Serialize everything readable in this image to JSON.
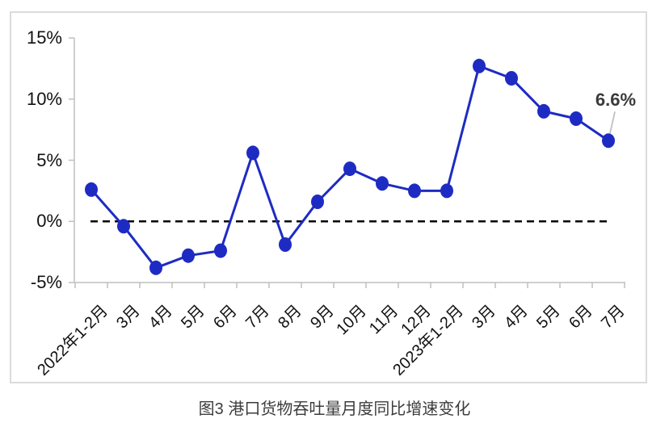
{
  "figure": {
    "caption": "图3 港口货物吞吐量月度同比增速变化"
  },
  "chart_data": {
    "type": "line",
    "title": "图3 港口货物吞吐量月度同比增速变化",
    "categories": [
      "2022年1-2月",
      "3月",
      "4月",
      "5月",
      "6月",
      "7月",
      "8月",
      "9月",
      "10月",
      "11月",
      "12月",
      "2023年1-2月",
      "3月",
      "4月",
      "5月",
      "6月",
      "7月"
    ],
    "values": [
      2.6,
      -0.4,
      -3.8,
      -2.8,
      -2.4,
      5.6,
      -1.9,
      1.6,
      4.3,
      3.1,
      2.5,
      2.5,
      12.7,
      11.7,
      9.0,
      8.4,
      6.6
    ],
    "xlabel": "",
    "ylabel": "",
    "ylim": [
      -5,
      15
    ],
    "yticks": [
      {
        "value": 15,
        "label": "15%"
      },
      {
        "value": 10,
        "label": "10%"
      },
      {
        "value": 5,
        "label": "5%"
      },
      {
        "value": 0,
        "label": "0%"
      },
      {
        "value": -5,
        "label": "-5%"
      }
    ],
    "grid": false,
    "legend": false,
    "zero_line_style": "dashed",
    "annotation": {
      "text": "6.6%",
      "category": "7月",
      "value": 6.6
    },
    "colors": {
      "line": "#1e2bc3",
      "marker": "#1e2bc3",
      "axis": "#bfbfbf",
      "zero_line": "#000000",
      "annotation_text": "#3a3a3a",
      "leader_line": "#bfbfbf",
      "frame_border": "#dbdbdb",
      "tick_label": "#111111"
    }
  }
}
